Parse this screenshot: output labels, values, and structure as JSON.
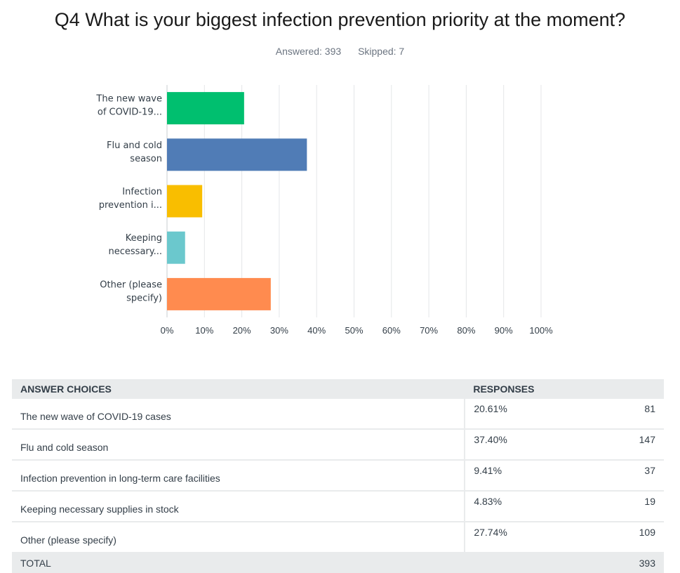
{
  "question": {
    "title": "Q4 What is your biggest infection prevention priority at the moment?"
  },
  "stats": {
    "answered": "Answered: 393",
    "skipped": "Skipped: 7"
  },
  "chart_data": {
    "type": "bar",
    "orientation": "horizontal",
    "categories": [
      "The new wave of COVID-19...",
      "Flu and cold season",
      "Infection prevention i...",
      "Keeping necessary...",
      "Other (please specify)"
    ],
    "category_lines": [
      [
        "The new wave",
        "of COVID-19..."
      ],
      [
        "Flu and cold",
        "season"
      ],
      [
        "Infection",
        "prevention i..."
      ],
      [
        "Keeping",
        "necessary..."
      ],
      [
        "Other (please",
        "specify)"
      ]
    ],
    "values": [
      20.61,
      37.4,
      9.41,
      4.83,
      27.74
    ],
    "colors": [
      "#00bf6f",
      "#507cb6",
      "#f9be00",
      "#6bc8cd",
      "#ff8b4f"
    ],
    "xlim": [
      0,
      100
    ],
    "xticks": [
      "0%",
      "10%",
      "20%",
      "30%",
      "40%",
      "50%",
      "60%",
      "70%",
      "80%",
      "90%",
      "100%"
    ],
    "grid": true
  },
  "table": {
    "headers": {
      "choices": "ANSWER CHOICES",
      "responses": "RESPONSES"
    },
    "rows": [
      {
        "choice": "The new wave of COVID-19 cases",
        "percent": "20.61%",
        "count": "81"
      },
      {
        "choice": "Flu and cold season",
        "percent": "37.40%",
        "count": "147"
      },
      {
        "choice": "Infection prevention in long-term care facilities",
        "percent": "9.41%",
        "count": "37"
      },
      {
        "choice": "Keeping necessary supplies in stock",
        "percent": "4.83%",
        "count": "19"
      },
      {
        "choice": "Other (please specify)",
        "percent": "27.74%",
        "count": "109"
      }
    ],
    "total": {
      "label": "TOTAL",
      "count": "393"
    }
  }
}
